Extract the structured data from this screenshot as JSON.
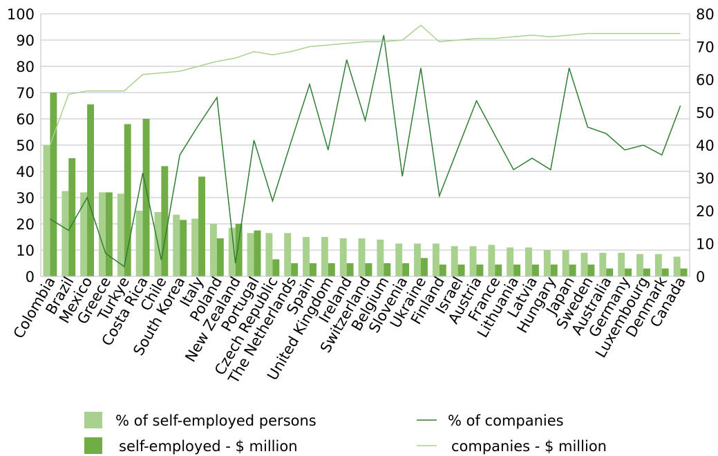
{
  "chart_data": {
    "type": "bar",
    "categories": [
      "Colombia",
      "Brazil",
      "Mexico",
      "Greece",
      "Turkye",
      "Costa Rica",
      "Chile",
      "South Korea",
      "Italy",
      "Poland",
      "New Zealand",
      "Portugal",
      "Czech Republic",
      "The Netherlands",
      "Spain",
      "United Kingdom",
      "Ireland",
      "Switzerland",
      "Belgium",
      "Slovenia",
      "Ukraine",
      "Finland",
      "Israel",
      "Austria",
      "France",
      "Lithuania",
      "Latvia",
      "Hungary",
      "Japan",
      "Sweden",
      "Australia",
      "Germany",
      "Luxembourg",
      "Denmark",
      "Canada"
    ],
    "y_left": {
      "min": 0,
      "max": 100,
      "ticks": [
        "0",
        "10",
        "20",
        "30",
        "40",
        "50",
        "60",
        "70",
        "80",
        "90",
        "100"
      ]
    },
    "y_right": {
      "min": 0,
      "max": 80,
      "ticks": [
        "0",
        "10",
        "20",
        "30",
        "40",
        "50",
        "60",
        "70",
        "80"
      ]
    },
    "grid": true,
    "legend_position": "bottom",
    "series": [
      {
        "name": "% of self-employed persons",
        "kind": "bar",
        "axis": "left",
        "color": "#a9d18e",
        "values": [
          50,
          32.5,
          32,
          32,
          31.5,
          25,
          24.5,
          23.5,
          22,
          20,
          18.5,
          16.5,
          16.5,
          16.5,
          15,
          15,
          14.5,
          14.5,
          14,
          12.5,
          12.5,
          12.5,
          11.5,
          11.5,
          12,
          11,
          11,
          10,
          10,
          9,
          9,
          9,
          8.5,
          8.5,
          7.5
        ]
      },
      {
        "name": "self-employed - $ million",
        "kind": "bar",
        "axis": "left",
        "color": "#70ad47",
        "values": [
          70,
          45,
          65.5,
          32,
          58,
          60,
          42,
          21.5,
          38,
          14.5,
          20,
          17.5,
          6.5,
          5,
          5,
          5,
          5,
          5,
          5,
          5,
          7,
          4.5,
          4.5,
          4.5,
          4.5,
          4.5,
          4.5,
          4.5,
          4.5,
          4.5,
          3,
          3,
          3,
          3,
          3
        ]
      },
      {
        "name": "% of companies",
        "kind": "line",
        "axis": "right",
        "color": "#2e7d32",
        "values": [
          17.5,
          14,
          24,
          7,
          3,
          31.5,
          5,
          37,
          46,
          54.5,
          4,
          41.5,
          23,
          41,
          58.5,
          38.5,
          66,
          47.5,
          73.5,
          30.5,
          63.5,
          24.5,
          39,
          53.5,
          43,
          32.5,
          36,
          32.5,
          63.5,
          45.5,
          43.5,
          38.5,
          40,
          37,
          52
        ]
      },
      {
        "name": "companies - $ million",
        "kind": "line",
        "axis": "right",
        "color": "#a9d18e",
        "values": [
          40,
          55.5,
          56.5,
          56.5,
          56.5,
          61.5,
          62,
          62.5,
          64,
          65.5,
          66.5,
          68.5,
          67.5,
          68.5,
          70,
          70.5,
          71,
          71.5,
          71.5,
          72,
          76.5,
          71.5,
          72,
          72.5,
          72.5,
          73,
          73.5,
          73,
          73.5,
          74,
          74,
          74,
          74,
          74,
          74
        ]
      }
    ]
  },
  "legend": {
    "items": [
      {
        "label": "% of self-employed persons",
        "symbol": "box",
        "color": "#a9d18e"
      },
      {
        "label": "self-employed - $ million",
        "symbol": "box",
        "color": "#70ad47"
      },
      {
        "label": "% of companies",
        "symbol": "line",
        "color": "#2e7d32"
      },
      {
        "label": "companies - $ million",
        "symbol": "line",
        "color": "#a9d18e"
      }
    ]
  }
}
